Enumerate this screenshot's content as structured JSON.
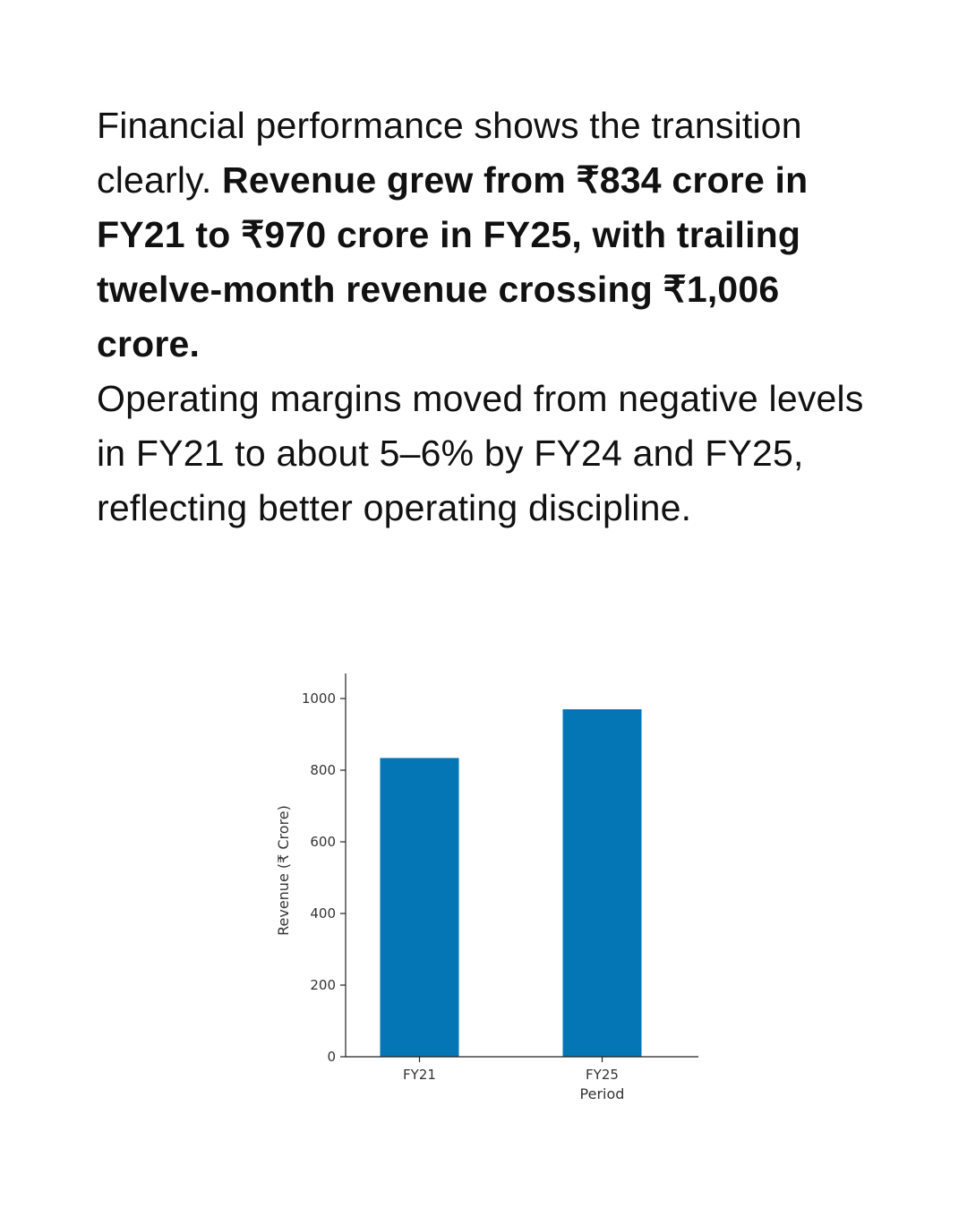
{
  "paragraph1": {
    "intro": "Financial performance shows the transition clearly. ",
    "bold": "Revenue grew from ₹834 crore in FY21 to ₹970 crore in FY25, with trailing twelve-month revenue crossing ₹1,006 crore."
  },
  "paragraph2": "Operating margins moved from negative levels in FY21 to about 5–6% by FY24 and FY25, reflecting better operating discipline.",
  "colors": {
    "bar": "#0576b5",
    "axis": "#222222",
    "text": "#111111"
  },
  "chart_data": {
    "type": "bar",
    "categories": [
      "FY21",
      "FY25"
    ],
    "values": [
      834,
      970
    ],
    "title": "",
    "xlabel": "Period",
    "ylabel": "Revenue (₹ Crore)",
    "ylim": [
      0,
      1070
    ],
    "yticks": [
      0,
      200,
      400,
      600,
      800,
      1000
    ],
    "grid": false
  }
}
